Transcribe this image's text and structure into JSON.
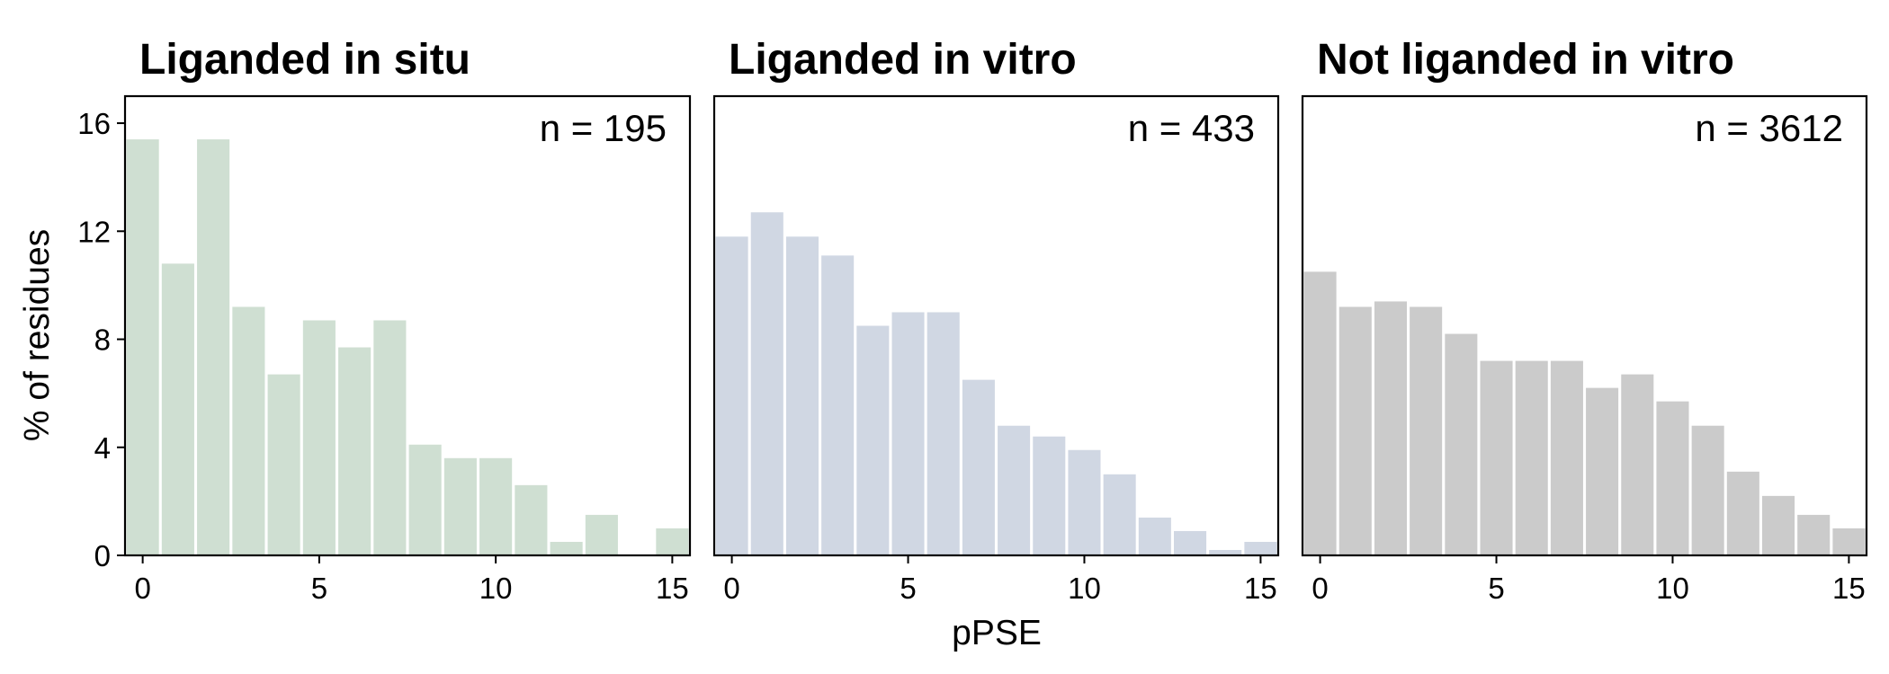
{
  "chart_data": [
    {
      "type": "bar",
      "title": "Liganded in situ",
      "annotation": "n = 195",
      "color": "#cfdfd2",
      "x": [
        0,
        1,
        2,
        3,
        4,
        5,
        6,
        7,
        8,
        9,
        10,
        11,
        12,
        13,
        14,
        15
      ],
      "values": [
        15.4,
        10.8,
        15.4,
        9.2,
        6.7,
        8.7,
        7.7,
        8.7,
        4.1,
        3.6,
        3.6,
        2.6,
        0.5,
        1.5,
        0.0,
        1.0
      ],
      "xticks": [
        0,
        5,
        10,
        15
      ],
      "xlim": [
        -0.5,
        15.5
      ],
      "ylim": [
        0,
        17
      ],
      "yticks": [
        0,
        4,
        8,
        12,
        16
      ]
    },
    {
      "type": "bar",
      "title": "Liganded in vitro",
      "annotation": "n = 433",
      "color": "#d0d7e3",
      "x": [
        0,
        1,
        2,
        3,
        4,
        5,
        6,
        7,
        8,
        9,
        10,
        11,
        12,
        13,
        14,
        15
      ],
      "values": [
        11.8,
        12.7,
        11.8,
        11.1,
        8.5,
        9.0,
        9.0,
        6.5,
        4.8,
        4.4,
        3.9,
        3.0,
        1.4,
        0.9,
        0.2,
        0.5
      ],
      "xticks": [
        0,
        5,
        10,
        15
      ],
      "xlim": [
        -0.5,
        15.5
      ],
      "ylim": [
        0,
        17
      ]
    },
    {
      "type": "bar",
      "title": "Not liganded in vitro",
      "annotation": "n = 3612",
      "color": "#cbcbcb",
      "x": [
        0,
        1,
        2,
        3,
        4,
        5,
        6,
        7,
        8,
        9,
        10,
        11,
        12,
        13,
        14,
        15
      ],
      "values": [
        10.5,
        9.2,
        9.4,
        9.2,
        8.2,
        7.2,
        7.2,
        7.2,
        6.2,
        6.7,
        5.7,
        4.8,
        3.1,
        2.2,
        1.5,
        1.0
      ],
      "xticks": [
        0,
        5,
        10,
        15
      ],
      "xlim": [
        -0.5,
        15.5
      ],
      "ylim": [
        0,
        17
      ]
    }
  ],
  "axes": {
    "xlabel": "pPSE",
    "ylabel": "% of residues"
  }
}
